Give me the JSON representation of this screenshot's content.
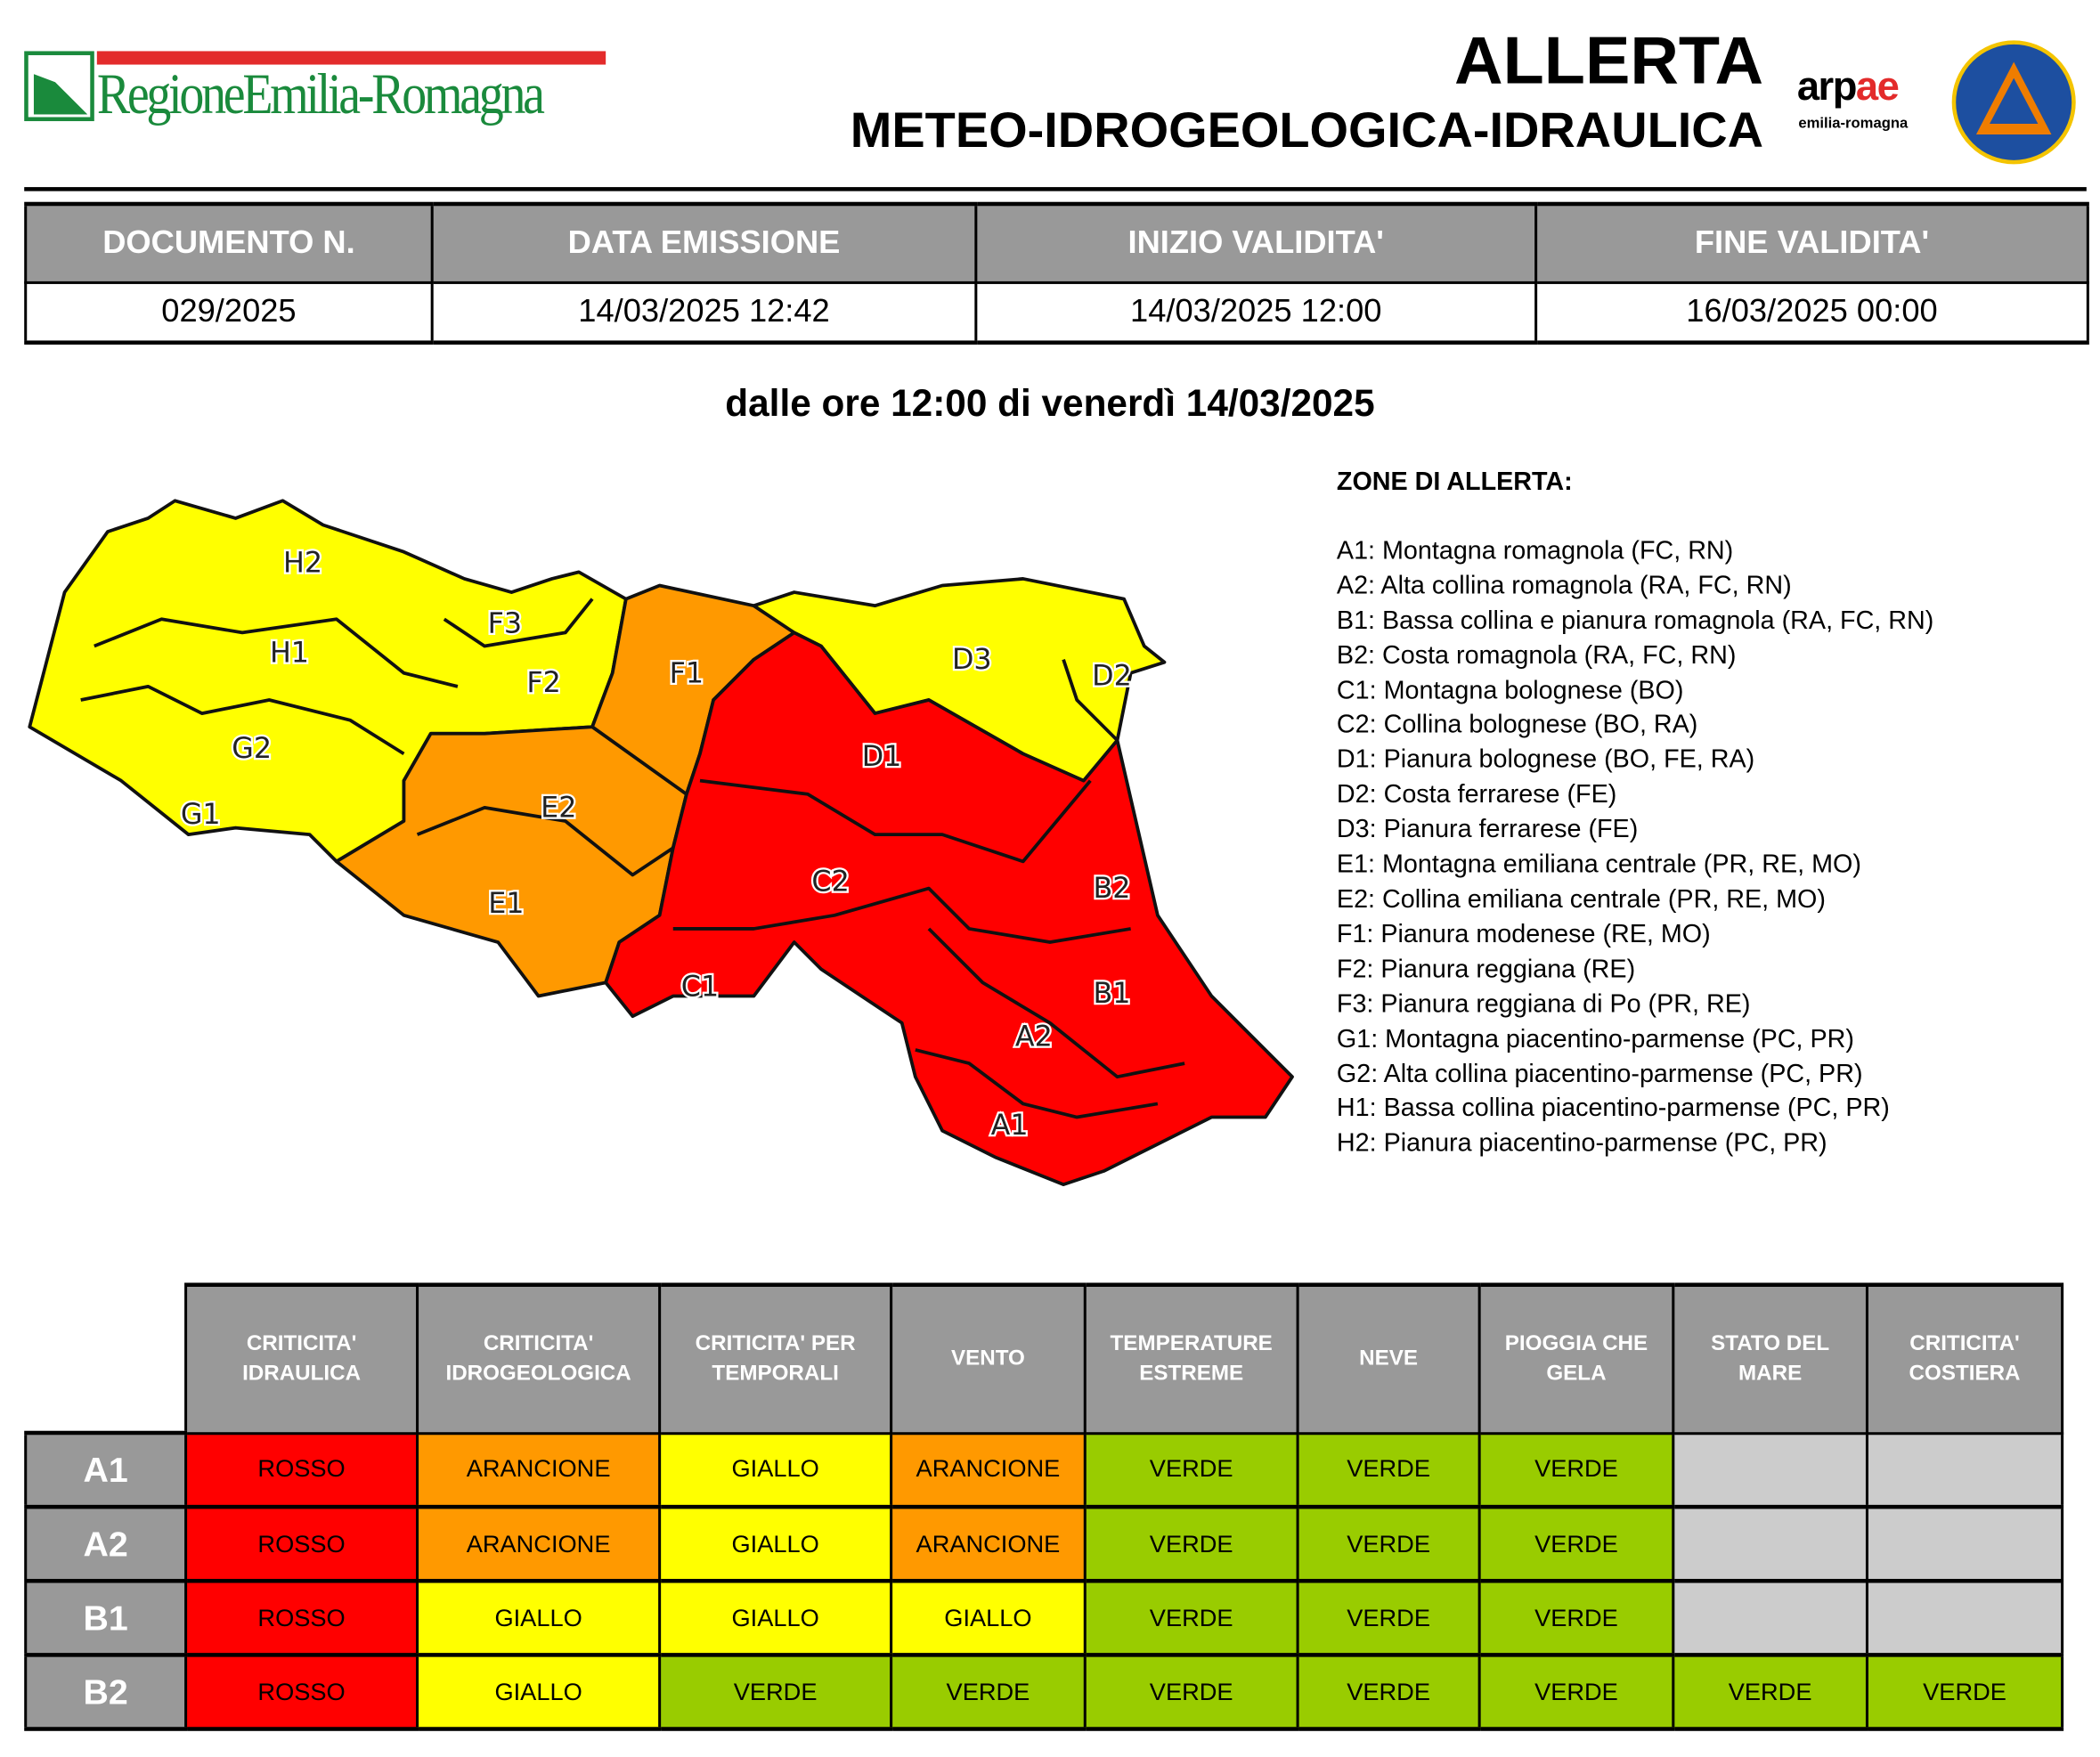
{
  "logo": {
    "text": "RegioneEmilia-Romagna"
  },
  "header": {
    "title": "ALLERTA",
    "subtitle": "METEO-IDROGEOLOGICA-IDRAULICA",
    "arpae_logo": {
      "brand_a": "arp",
      "brand_b": "ae",
      "sub": "emilia-romagna"
    },
    "protezione_civile_logo": "SICUREZZA TERRITORIALE PROTEZIONE CIVILE"
  },
  "info_table": {
    "columns": [
      "DOCUMENTO N.",
      "DATA EMISSIONE",
      "INIZIO VALIDITA'",
      "FINE VALIDITA'"
    ],
    "values": [
      "029/2025",
      "14/03/2025 12:42",
      "14/03/2025 12:00",
      "16/03/2025 00:00"
    ]
  },
  "period": "dalle ore 12:00 di venerdì 14/03/2025",
  "colors": {
    "ROSSO": "#ff0000",
    "ARANCIONE": "#ff9900",
    "GIALLO": "#ffff00",
    "VERDE": "#99cc00",
    "none": "#cccccc"
  },
  "map": {
    "zones": [
      {
        "id": "H2",
        "level": "GIALLO"
      },
      {
        "id": "H1",
        "level": "GIALLO"
      },
      {
        "id": "G2",
        "level": "GIALLO"
      },
      {
        "id": "G1",
        "level": "GIALLO"
      },
      {
        "id": "F3",
        "level": "GIALLO"
      },
      {
        "id": "F2",
        "level": "GIALLO"
      },
      {
        "id": "F1",
        "level": "ARANCIONE"
      },
      {
        "id": "E2",
        "level": "ARANCIONE"
      },
      {
        "id": "E1",
        "level": "ARANCIONE"
      },
      {
        "id": "D3",
        "level": "GIALLO"
      },
      {
        "id": "D2",
        "level": "GIALLO"
      },
      {
        "id": "D1",
        "level": "ROSSO"
      },
      {
        "id": "C2",
        "level": "ROSSO"
      },
      {
        "id": "C1",
        "level": "ROSSO"
      },
      {
        "id": "B2",
        "level": "ROSSO"
      },
      {
        "id": "B1",
        "level": "ROSSO"
      },
      {
        "id": "A2",
        "level": "ROSSO"
      },
      {
        "id": "A1",
        "level": "ROSSO"
      }
    ]
  },
  "zone_list": {
    "title": "ZONE DI ALLERTA:",
    "items": [
      "A1: Montagna romagnola (FC, RN)",
      "A2: Alta collina romagnola (RA, FC, RN)",
      "B1: Bassa collina e pianura romagnola (RA, FC, RN)",
      "B2: Costa romagnola (RA, FC, RN)",
      "C1: Montagna bolognese (BO)",
      "C2: Collina bolognese (BO, RA)",
      "D1: Pianura bolognese (BO, FE, RA)",
      "D2: Costa ferrarese (FE)",
      "D3: Pianura ferrarese (FE)",
      "E1: Montagna emiliana centrale (PR, RE, MO)",
      "E2: Collina emiliana centrale (PR, RE, MO)",
      "F1: Pianura modenese (RE, MO)",
      "F2: Pianura reggiana (RE)",
      "F3: Pianura reggiana di Po (PR, RE)",
      "G1: Montagna piacentino-parmense (PC, PR)",
      "G2: Alta collina piacentino-parmense (PC, PR)",
      "H1: Bassa collina piacentino-parmense (PC, PR)",
      "H2: Pianura piacentino-parmense (PC, PR)"
    ]
  },
  "alert_table": {
    "columns": [
      "CRITICITA' IDRAULICA",
      "CRITICITA' IDROGEOLOGICA",
      "CRITICITA' PER TEMPORALI",
      "VENTO",
      "TEMPERATURE ESTREME",
      "NEVE",
      "PIOGGIA CHE GELA",
      "STATO DEL MARE",
      "CRITICITA' COSTIERA"
    ],
    "rows": [
      {
        "zone": "A1",
        "values": [
          "ROSSO",
          "ARANCIONE",
          "GIALLO",
          "ARANCIONE",
          "VERDE",
          "VERDE",
          "VERDE",
          "",
          ""
        ]
      },
      {
        "zone": "A2",
        "values": [
          "ROSSO",
          "ARANCIONE",
          "GIALLO",
          "ARANCIONE",
          "VERDE",
          "VERDE",
          "VERDE",
          "",
          ""
        ]
      },
      {
        "zone": "B1",
        "values": [
          "ROSSO",
          "GIALLO",
          "GIALLO",
          "GIALLO",
          "VERDE",
          "VERDE",
          "VERDE",
          "",
          ""
        ]
      },
      {
        "zone": "B2",
        "values": [
          "ROSSO",
          "GIALLO",
          "VERDE",
          "VERDE",
          "VERDE",
          "VERDE",
          "VERDE",
          "VERDE",
          "VERDE"
        ]
      }
    ]
  }
}
